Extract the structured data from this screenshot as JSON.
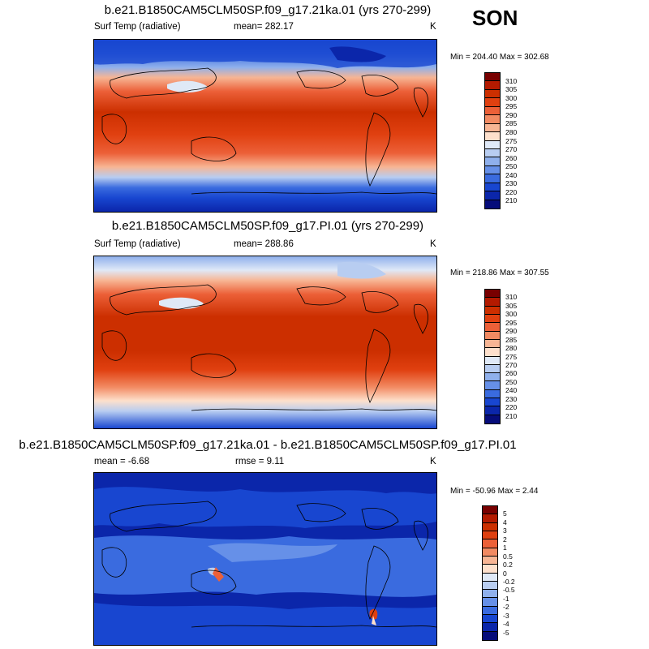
{
  "season": "SON",
  "panels": [
    {
      "title": "b.e21.B1850CAM5CLM50SP.f09_g17.21ka.01 (yrs 270-299)",
      "field": "Surf Temp (radiative)",
      "mean_label": "mean= 282.17",
      "units": "K",
      "minmax": "Min = 204.40 Max = 302.68",
      "levels": [
        "310",
        "305",
        "300",
        "295",
        "290",
        "285",
        "280",
        "275",
        "270",
        "260",
        "250",
        "240",
        "230",
        "220",
        "210"
      ],
      "colors": [
        "#780000",
        "#b31a00",
        "#cc2f00",
        "#e04010",
        "#ec6038",
        "#f28a62",
        "#f7b594",
        "#fde0cc",
        "#dfe9f7",
        "#b8cdf1",
        "#8fb0ec",
        "#6690e8",
        "#3a6bdf",
        "#1846d0",
        "#0b26aa",
        "#060c7a"
      ]
    },
    {
      "title": "b.e21.B1850CAM5CLM50SP.f09_g17.PI.01 (yrs 270-299)",
      "field": "Surf Temp (radiative)",
      "mean_label": "mean= 288.86",
      "units": "K",
      "minmax": "Min = 218.86 Max = 307.55",
      "levels": [
        "310",
        "305",
        "300",
        "295",
        "290",
        "285",
        "280",
        "275",
        "270",
        "260",
        "250",
        "240",
        "230",
        "220",
        "210"
      ],
      "colors": [
        "#780000",
        "#b31a00",
        "#cc2f00",
        "#e04010",
        "#ec6038",
        "#f28a62",
        "#f7b594",
        "#fde0cc",
        "#dfe9f7",
        "#b8cdf1",
        "#8fb0ec",
        "#6690e8",
        "#3a6bdf",
        "#1846d0",
        "#0b26aa",
        "#060c7a"
      ]
    },
    {
      "title": "b.e21.B1850CAM5CLM50SP.f09_g17.21ka.01 - b.e21.B1850CAM5CLM50SP.f09_g17.PI.01",
      "mean_label": "mean =  -6.68",
      "rmse_label": "rmse =   9.11",
      "units": "K",
      "minmax": "Min = -50.96 Max =   2.44",
      "levels": [
        "5",
        "4",
        "3",
        "2",
        "1",
        "0.5",
        "0.2",
        "0",
        "-0.2",
        "-0.5",
        "-1",
        "-2",
        "-3",
        "-4",
        "-5"
      ],
      "colors": [
        "#780000",
        "#b31a00",
        "#cc2f00",
        "#e04010",
        "#ec6038",
        "#f28a62",
        "#f7b594",
        "#fde0cc",
        "#dfe9f7",
        "#b8cdf1",
        "#8fb0ec",
        "#6690e8",
        "#3a6bdf",
        "#1846d0",
        "#0b26aa",
        "#060c7a"
      ]
    }
  ]
}
